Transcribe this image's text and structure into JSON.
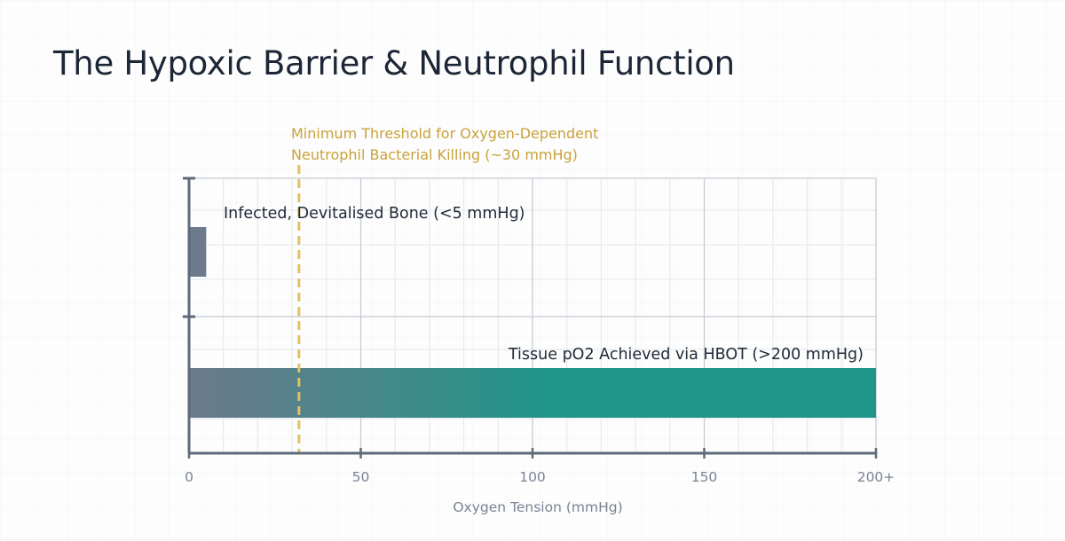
{
  "page": {
    "title": "The Hypoxic Barrier & Neutrophil Function"
  },
  "chart_data": {
    "type": "bar",
    "orientation": "horizontal",
    "categories": [
      "Infected, Devitalised Bone (<5 mmHg)",
      "Tissue pO2 Achieved via HBOT (>200 mmHg)"
    ],
    "values": [
      5,
      200
    ],
    "xlim": [
      0,
      200
    ],
    "xticks": [
      {
        "value": 0,
        "label": "0"
      },
      {
        "value": 50,
        "label": "50"
      },
      {
        "value": 100,
        "label": "100"
      },
      {
        "value": 150,
        "label": "150"
      },
      {
        "value": 200,
        "label": "200+"
      }
    ],
    "xlabel": "Oxygen Tension (mmHg)",
    "ylabel": "",
    "grid": true,
    "legend": "none",
    "threshold": {
      "value": 32,
      "label_lines": [
        "Minimum Threshold for Oxygen-Dependent",
        "Neutrophil Bacterial Killing (~30 mmHg)"
      ],
      "style": "dashed",
      "color": "#e3c15f",
      "label_color": "#c9a23a"
    },
    "colors": {
      "bar_low": "#6c7a8b",
      "bar_high_start": "#6c7a8b",
      "bar_high_end": "#21958a",
      "axis": "#5f6b7b",
      "grid_major": "#c4cad2",
      "grid_minor": "#e3e7ec",
      "text": "#1f2937",
      "tick_text": "#7a8493"
    }
  }
}
